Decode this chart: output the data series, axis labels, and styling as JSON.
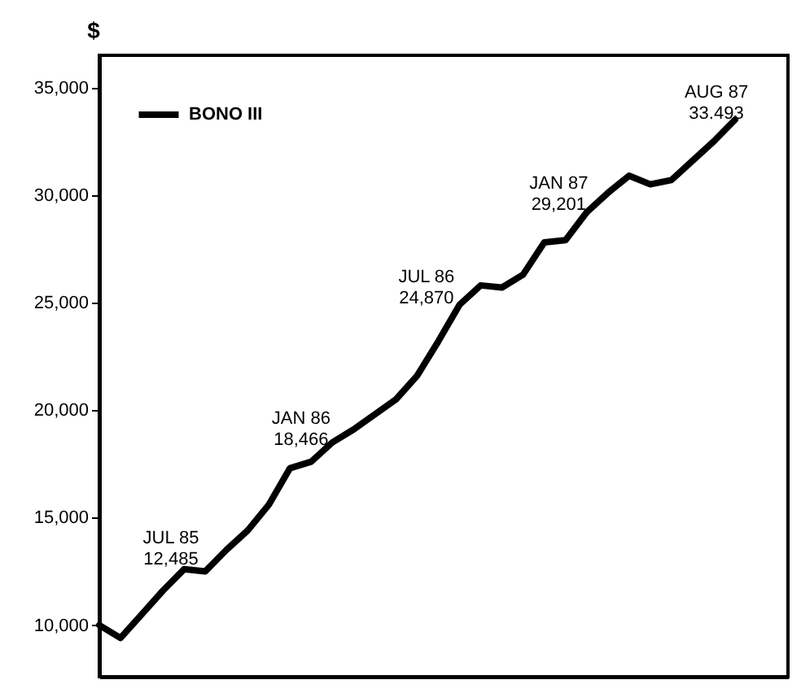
{
  "chart_data": {
    "type": "line",
    "ylabel": "$",
    "categories": [
      null,
      null,
      null,
      null,
      null,
      null,
      null,
      null,
      null,
      null,
      null,
      null,
      null,
      null,
      null,
      null,
      null,
      null,
      null,
      null,
      null,
      null,
      null,
      null,
      null,
      null,
      null,
      null,
      null,
      null,
      null
    ],
    "series": [
      {
        "name": "BONO III",
        "color": "#000000",
        "values": [
          10000,
          9400,
          10500,
          11600,
          12600,
          12500,
          13500,
          14400,
          15600,
          17300,
          17600,
          18500,
          19100,
          19800,
          20500,
          21600,
          23200,
          24900,
          25800,
          25700,
          26300,
          27800,
          27900,
          29200,
          30100,
          30900,
          30500,
          30700,
          31600,
          32500,
          33500
        ]
      }
    ],
    "ylim": [
      7600,
      36500
    ],
    "yticks": [
      {
        "value": 10000,
        "label": "10,000"
      },
      {
        "value": 15000,
        "label": "15,000"
      },
      {
        "value": 20000,
        "label": "20,000"
      },
      {
        "value": 25000,
        "label": "25,000"
      },
      {
        "value": 30000,
        "label": "30,000"
      },
      {
        "value": 35000,
        "label": "35,000"
      }
    ],
    "annotations": [
      "JUL 85\n12,485",
      "JAN 86\n18,466",
      "JUL 86\n24,870",
      "JAN 87\n29,201",
      "AUG 87\n33.493"
    ],
    "legend": "top left",
    "grid": false,
    "tick_labels": "y",
    "line_style": "solid",
    "marker": "none"
  }
}
